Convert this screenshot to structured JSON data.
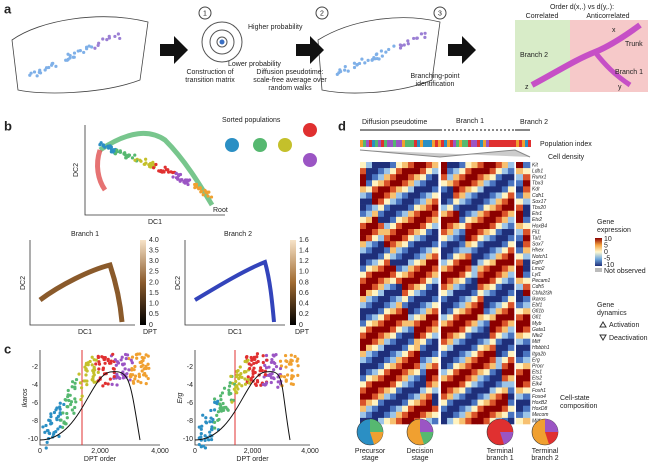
{
  "panel_a": {
    "label": "a",
    "steps": [
      {
        "number": "1",
        "caption": [
          "Construction of",
          "transition matrix"
        ]
      },
      {
        "number": "2",
        "caption": [
          "Diffusion pseudotime:",
          "scale-free average over",
          "random walks"
        ]
      },
      {
        "number": "3",
        "caption": [
          "Branching-point",
          "identification"
        ]
      }
    ],
    "higher": "Higher probability",
    "lower": "Lower probability",
    "order_title": "Order d(x,.) vs d(y,.):",
    "correlated": "Correlated",
    "anticorrelated": "Anticorrelated",
    "branch2": "Branch 2",
    "branch1": "Branch 1",
    "trunk": "Trunk",
    "x": "x",
    "y": "y",
    "z": "z"
  },
  "panel_b": {
    "label": "b",
    "dc1": "DC1",
    "dc2": "DC2",
    "root": "Root",
    "sorted": "Sorted populations",
    "branch1": "Branch 1",
    "branch2": "Branch 2",
    "dpt": "DPT",
    "colorbar1": [
      "4.0",
      "3.5",
      "3.0",
      "2.5",
      "2.0",
      "1.5",
      "1.0",
      "0.5",
      "0"
    ],
    "colorbar2": [
      "1.6",
      "1.4",
      "1.2",
      "1.0",
      "0.8",
      "0.6",
      "0.4",
      "0.2",
      "0"
    ]
  },
  "panel_c": {
    "label": "c",
    "ylabels": [
      "Ikaros",
      "Erg"
    ],
    "xlabel": "DPT order",
    "xticks": [
      "0",
      "2,000",
      "4,000"
    ],
    "yticks": [
      "-2",
      "-4",
      "-6",
      "-8",
      "-10"
    ]
  },
  "panel_d": {
    "label": "d",
    "diffusion": "Diffusion pseudotime",
    "branch1": "Branch 1",
    "branch2": "Branch 2",
    "population_index": "Population index",
    "cell_density": "Cell density",
    "genes": [
      "Kit",
      "Ldb1",
      "Runx1",
      "Tbx3",
      "Kdr",
      "Cdh1",
      "Sox17",
      "Tbx20",
      "Etv1",
      "Etv2",
      "HoxB4",
      "Fli1",
      "Tal1",
      "Sox7",
      "Hhex",
      "Notch1",
      "Egfl7",
      "Lmo2",
      "Lyl1",
      "Pecam1",
      "Cdh5",
      "Cbfa2t3h",
      "Ikaros",
      "Ebf1",
      "Gfi1b",
      "Gfi1",
      "Myb",
      "Gata1",
      "Nfe2",
      "Mitf",
      "Hbbbh1",
      "Itga2b",
      "Erg",
      "Procr",
      "Ets1",
      "Ets2",
      "Elk4",
      "Foxh1",
      "Foxo4",
      "HoxB2",
      "HoxD8",
      "Mecom",
      "Mitf"
    ],
    "gene_expression": [
      "Gene",
      "expression"
    ],
    "scale": [
      "10",
      "5",
      "0",
      "-5",
      "-10"
    ],
    "not_observed": "Not observed",
    "gene_dynamics": [
      "Gene",
      "dynamics"
    ],
    "activation": "Activation",
    "deactivation": "Deactivation",
    "composition": [
      "Cell-state",
      "composition"
    ],
    "stages": [
      [
        "Precursor",
        "stage"
      ],
      [
        "Decision",
        "stage"
      ],
      [
        "Terminal",
        "branch 1"
      ],
      [
        "Terminal",
        "branch 2"
      ]
    ]
  }
}
